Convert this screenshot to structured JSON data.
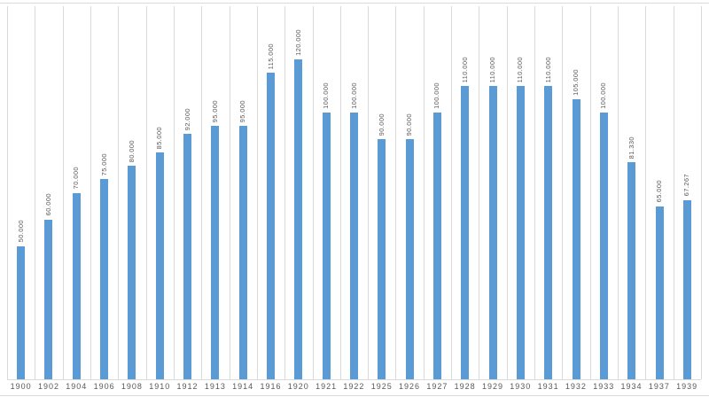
{
  "chart": {
    "background_color": "#ffffff",
    "bar_color": "#5b9bd5",
    "gridline_color": "#d9d9d9",
    "axis_line_color": "#d9d9d9",
    "text_color": "#595959"
  },
  "chart_data": {
    "type": "bar",
    "title": "",
    "xlabel": "",
    "ylabel": "",
    "categories": [
      "1900",
      "1902",
      "1904",
      "1906",
      "1908",
      "1910",
      "1912",
      "1913",
      "1914",
      "1916",
      "1920",
      "1921",
      "1922",
      "1925",
      "1926",
      "1927",
      "1928",
      "1929",
      "1930",
      "1931",
      "1932",
      "1933",
      "1934",
      "1937",
      "1939"
    ],
    "values": [
      50000,
      60000,
      70000,
      75000,
      80000,
      85000,
      92000,
      95000,
      95000,
      115000,
      120000,
      100000,
      100000,
      90000,
      90000,
      100000,
      110000,
      110000,
      110000,
      110000,
      105000,
      100000,
      81330,
      65000,
      67267
    ],
    "data_labels": [
      "50.000",
      "60.000",
      "70.000",
      "75.000",
      "80.000",
      "85.000",
      "92.000",
      "95.000",
      "95.000",
      "115.000",
      "120.000",
      "100.000",
      "100.000",
      "90.000",
      "90.000",
      "100.000",
      "110.000",
      "110.000",
      "110.000",
      "110.000",
      "105.000",
      "100.000",
      "81.330",
      "65.000",
      "67.267"
    ],
    "ylim": [
      0,
      140000
    ],
    "grid": "vertical-only",
    "legend": "none",
    "data_label_rotation": "vertical-bottom-to-top"
  }
}
